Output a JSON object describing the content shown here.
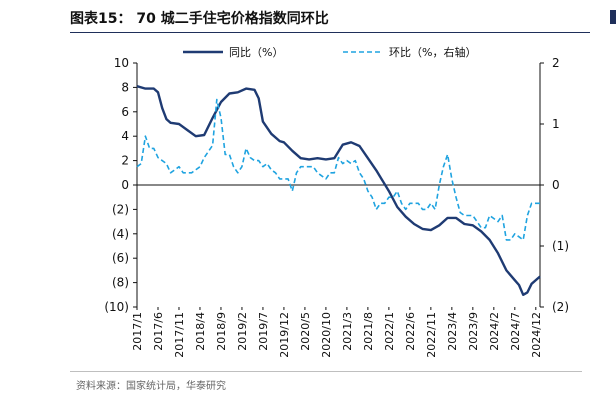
{
  "header": {
    "title": "图表15： 70 城二手住宅价格指数同环比"
  },
  "footer": {
    "source": "资料来源：国家统计局，华泰研究"
  },
  "colors": {
    "navy": "#1f3b73",
    "cyan": "#1fa3e0"
  },
  "chart_data": {
    "type": "line",
    "title": "图表15： 70 城二手住宅价格指数同环比",
    "left_axis": {
      "ylim": [
        -10,
        10
      ],
      "ticks": [
        10,
        8,
        6,
        4,
        2,
        0,
        -2,
        -4,
        -6,
        -8,
        -10
      ],
      "tick_labels": [
        "10",
        "8",
        "6",
        "4",
        "2",
        "0",
        "(2)",
        "(4)",
        "(6)",
        "(8)",
        "(10)"
      ]
    },
    "right_axis": {
      "ylim": [
        -2,
        2
      ],
      "ticks": [
        2,
        1,
        0,
        -1,
        -2
      ],
      "tick_labels": [
        "2",
        "1",
        "0",
        "(1)",
        "(2)"
      ]
    },
    "x_tick_labels": [
      "2017/1",
      "2017/6",
      "2017/11",
      "2018/4",
      "2018/9",
      "2019/2",
      "2019/7",
      "2019/12",
      "2020/5",
      "2020/10",
      "2021/3",
      "2021/8",
      "2022/1",
      "2022/6",
      "2022/11",
      "2023/4",
      "2023/9",
      "2024/2",
      "2024/7",
      "2024/12"
    ],
    "legend": {
      "position": "top"
    },
    "series": [
      {
        "name": "同比（%）",
        "axis": "left",
        "color": "#1f3b73",
        "style": "solid",
        "points": [
          [
            "2017/1",
            8.1
          ],
          [
            "2017/3",
            7.9
          ],
          [
            "2017/5",
            7.9
          ],
          [
            "2017/6",
            7.6
          ],
          [
            "2017/7",
            6.3
          ],
          [
            "2017/8",
            5.4
          ],
          [
            "2017/9",
            5.1
          ],
          [
            "2017/11",
            5.0
          ],
          [
            "2018/1",
            4.5
          ],
          [
            "2018/3",
            4.0
          ],
          [
            "2018/5",
            4.1
          ],
          [
            "2018/7",
            5.5
          ],
          [
            "2018/9",
            6.8
          ],
          [
            "2018/11",
            7.5
          ],
          [
            "2019/1",
            7.6
          ],
          [
            "2019/3",
            7.9
          ],
          [
            "2019/5",
            7.8
          ],
          [
            "2019/6",
            7.1
          ],
          [
            "2019/7",
            5.2
          ],
          [
            "2019/9",
            4.2
          ],
          [
            "2019/11",
            3.6
          ],
          [
            "2019/12",
            3.5
          ],
          [
            "2020/2",
            2.8
          ],
          [
            "2020/4",
            2.2
          ],
          [
            "2020/6",
            2.1
          ],
          [
            "2020/8",
            2.2
          ],
          [
            "2020/10",
            2.1
          ],
          [
            "2020/12",
            2.2
          ],
          [
            "2021/2",
            3.3
          ],
          [
            "2021/4",
            3.5
          ],
          [
            "2021/6",
            3.2
          ],
          [
            "2021/8",
            2.2
          ],
          [
            "2021/10",
            1.2
          ],
          [
            "2022/1",
            -0.5
          ],
          [
            "2022/3",
            -1.8
          ],
          [
            "2022/5",
            -2.6
          ],
          [
            "2022/7",
            -3.2
          ],
          [
            "2022/9",
            -3.6
          ],
          [
            "2022/11",
            -3.7
          ],
          [
            "2023/1",
            -3.3
          ],
          [
            "2023/3",
            -2.7
          ],
          [
            "2023/5",
            -2.7
          ],
          [
            "2023/7",
            -3.2
          ],
          [
            "2023/9",
            -3.3
          ],
          [
            "2023/11",
            -3.8
          ],
          [
            "2024/1",
            -4.5
          ],
          [
            "2024/3",
            -5.6
          ],
          [
            "2024/5",
            -7.0
          ],
          [
            "2024/7",
            -7.8
          ],
          [
            "2024/8",
            -8.2
          ],
          [
            "2024/9",
            -9.0
          ],
          [
            "2024/10",
            -8.8
          ],
          [
            "2024/11",
            -8.1
          ],
          [
            "2025/1",
            -7.5
          ]
        ]
      },
      {
        "name": "环比（%，右轴）",
        "axis": "right",
        "color": "#1fa3e0",
        "style": "dashed",
        "points": [
          [
            "2017/1",
            0.3
          ],
          [
            "2017/2",
            0.35
          ],
          [
            "2017/3",
            0.8
          ],
          [
            "2017/4",
            0.6
          ],
          [
            "2017/5",
            0.6
          ],
          [
            "2017/6",
            0.45
          ],
          [
            "2017/8",
            0.35
          ],
          [
            "2017/9",
            0.2
          ],
          [
            "2017/10",
            0.25
          ],
          [
            "2017/11",
            0.3
          ],
          [
            "2017/12",
            0.2
          ],
          [
            "2018/1",
            0.2
          ],
          [
            "2018/2",
            0.2
          ],
          [
            "2018/4",
            0.3
          ],
          [
            "2018/5",
            0.45
          ],
          [
            "2018/7",
            0.65
          ],
          [
            "2018/8",
            1.4
          ],
          [
            "2018/9",
            1.1
          ],
          [
            "2018/10",
            0.5
          ],
          [
            "2018/11",
            0.5
          ],
          [
            "2018/12",
            0.3
          ],
          [
            "2019/1",
            0.2
          ],
          [
            "2019/2",
            0.3
          ],
          [
            "2019/3",
            0.6
          ],
          [
            "2019/4",
            0.45
          ],
          [
            "2019/5",
            0.4
          ],
          [
            "2019/6",
            0.4
          ],
          [
            "2019/7",
            0.3
          ],
          [
            "2019/8",
            0.35
          ],
          [
            "2019/9",
            0.25
          ],
          [
            "2019/10",
            0.2
          ],
          [
            "2019/11",
            0.1
          ],
          [
            "2019/12",
            0.1
          ],
          [
            "2020/1",
            0.1
          ],
          [
            "2020/2",
            -0.1
          ],
          [
            "2020/3",
            0.2
          ],
          [
            "2020/4",
            0.3
          ],
          [
            "2020/5",
            0.3
          ],
          [
            "2020/6",
            0.3
          ],
          [
            "2020/7",
            0.3
          ],
          [
            "2020/8",
            0.2
          ],
          [
            "2020/10",
            0.1
          ],
          [
            "2020/11",
            0.2
          ],
          [
            "2020/12",
            0.2
          ],
          [
            "2021/1",
            0.45
          ],
          [
            "2021/2",
            0.35
          ],
          [
            "2021/3",
            0.4
          ],
          [
            "2021/4",
            0.35
          ],
          [
            "2021/5",
            0.4
          ],
          [
            "2021/6",
            0.2
          ],
          [
            "2021/7",
            0.1
          ],
          [
            "2021/8",
            -0.1
          ],
          [
            "2021/9",
            -0.2
          ],
          [
            "2021/10",
            -0.4
          ],
          [
            "2021/11",
            -0.3
          ],
          [
            "2021/12",
            -0.3
          ],
          [
            "2022/1",
            -0.2
          ],
          [
            "2022/2",
            -0.2
          ],
          [
            "2022/3",
            -0.1
          ],
          [
            "2022/4",
            -0.3
          ],
          [
            "2022/5",
            -0.4
          ],
          [
            "2022/6",
            -0.3
          ],
          [
            "2022/7",
            -0.3
          ],
          [
            "2022/8",
            -0.3
          ],
          [
            "2022/9",
            -0.4
          ],
          [
            "2022/10",
            -0.4
          ],
          [
            "2022/11",
            -0.3
          ],
          [
            "2022/12",
            -0.4
          ],
          [
            "2023/1",
            0.0
          ],
          [
            "2023/2",
            0.3
          ],
          [
            "2023/3",
            0.5
          ],
          [
            "2023/4",
            0.1
          ],
          [
            "2023/5",
            -0.2
          ],
          [
            "2023/6",
            -0.45
          ],
          [
            "2023/7",
            -0.5
          ],
          [
            "2023/8",
            -0.5
          ],
          [
            "2023/9",
            -0.5
          ],
          [
            "2023/10",
            -0.6
          ],
          [
            "2023/11",
            -0.7
          ],
          [
            "2023/12",
            -0.7
          ],
          [
            "2024/1",
            -0.5
          ],
          [
            "2024/2",
            -0.55
          ],
          [
            "2024/3",
            -0.6
          ],
          [
            "2024/4",
            -0.5
          ],
          [
            "2024/5",
            -0.9
          ],
          [
            "2024/6",
            -0.9
          ],
          [
            "2024/7",
            -0.8
          ],
          [
            "2024/8",
            -0.85
          ],
          [
            "2024/9",
            -0.9
          ],
          [
            "2024/10",
            -0.5
          ],
          [
            "2024/11",
            -0.3
          ],
          [
            "2024/12",
            -0.3
          ],
          [
            "2025/1",
            -0.3
          ]
        ]
      }
    ]
  }
}
